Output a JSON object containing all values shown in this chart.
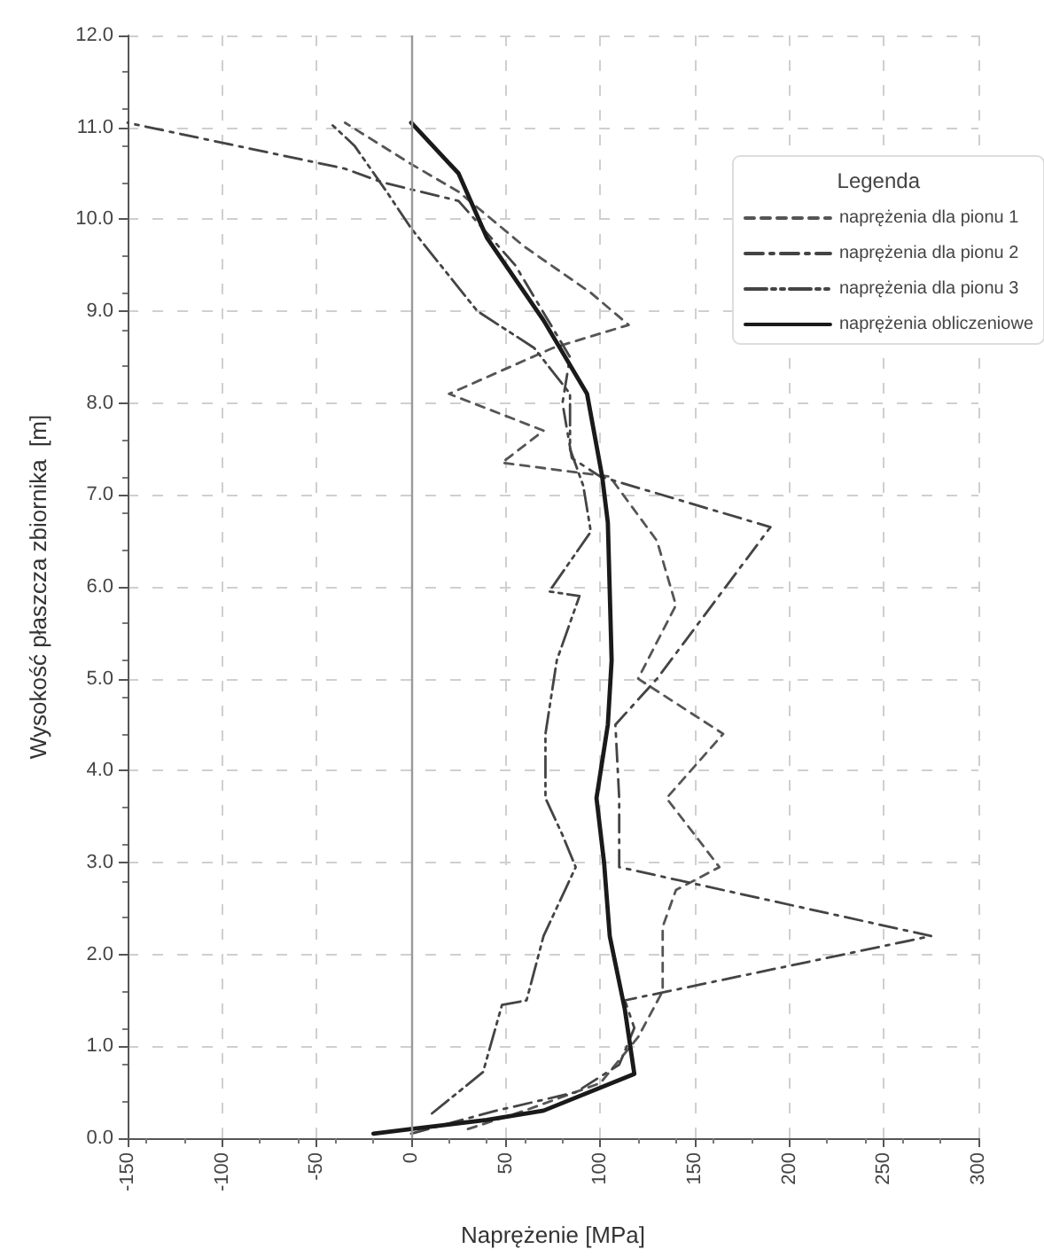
{
  "chart_data": {
    "type": "line",
    "xlabel": "Naprężenie [MPa]",
    "ylabel": "Wysokość płaszcza zbiornika  [m]",
    "legend_title": "Legenda",
    "xlim": [
      -150,
      300
    ],
    "xticks": [
      -150,
      -100,
      -50,
      0,
      50,
      100,
      150,
      200,
      250,
      300
    ],
    "ylim": [
      0,
      12
    ],
    "yticks": [
      {
        "value": 0,
        "label": "0.0"
      },
      {
        "value": 1,
        "label": "1.0"
      },
      {
        "value": 2,
        "label": "2.0"
      },
      {
        "value": 3,
        "label": "3.0"
      },
      {
        "value": 4,
        "label": "4.0"
      },
      {
        "value": 5,
        "label": "5.0"
      },
      {
        "value": 6,
        "label": "6.0"
      },
      {
        "value": 7,
        "label": "7.0"
      },
      {
        "value": 8,
        "label": "8.0"
      },
      {
        "value": 9,
        "label": "9.0"
      },
      {
        "value": 10,
        "label": "10.0"
      },
      {
        "value": 11,
        "label": "11.0"
      },
      {
        "value": 12,
        "label": "12.0"
      }
    ],
    "grid": true,
    "legend": "top right",
    "marker": "none",
    "ref_lines": [
      {
        "axis": "x",
        "value": 0,
        "color": "#999999",
        "line_style": "solid"
      }
    ],
    "series": [
      {
        "name": "naprężenia dla pionu 1",
        "color": "#555555",
        "line_style": "dashed",
        "x": [
          30,
          60,
          100,
          120,
          133,
          133,
          140,
          163,
          150,
          135,
          165,
          120,
          140,
          130,
          105,
          48,
          70,
          20,
          75,
          115,
          95,
          60,
          25,
          0,
          -35
        ],
        "values": [
          0.1,
          0.3,
          0.6,
          1.1,
          1.6,
          2.3,
          2.7,
          2.95,
          3.3,
          3.7,
          4.4,
          5.0,
          5.8,
          6.5,
          7.2,
          7.35,
          7.7,
          8.1,
          8.6,
          8.85,
          9.2,
          9.7,
          10.3,
          10.6,
          11.05
        ]
      },
      {
        "name": "naprężenia dla pionu 2",
        "color": "#444444",
        "line_style": "dashed",
        "x": [
          0,
          45,
          87,
          110,
          118,
          113,
          275,
          110,
          110,
          108,
          130,
          190,
          100,
          85,
          80,
          84,
          55,
          25,
          -15,
          -35,
          -150
        ],
        "values": [
          0.05,
          0.3,
          0.5,
          0.8,
          1.2,
          1.5,
          2.2,
          2.95,
          3.7,
          4.5,
          5.0,
          6.65,
          7.2,
          7.4,
          8.0,
          8.5,
          9.5,
          10.2,
          10.4,
          10.55,
          11.05
        ]
      },
      {
        "name": "naprężenia dla pionu 3",
        "color": "#444444",
        "line_style": "dashed",
        "x": [
          11,
          38,
          48,
          61,
          70,
          87,
          80,
          71,
          71,
          77,
          89,
          73,
          95,
          91,
          84,
          84,
          65,
          35,
          0,
          -13,
          -30,
          -43
        ],
        "values": [
          0.27,
          0.72,
          1.45,
          1.5,
          2.2,
          2.95,
          3.3,
          3.7,
          4.4,
          5.2,
          5.9,
          5.95,
          6.6,
          7.1,
          7.5,
          8.1,
          8.6,
          9.0,
          9.9,
          10.3,
          10.8,
          11.05
        ]
      },
      {
        "name": "naprężenia obliczeniowe",
        "color": "#1a1a1a",
        "line_style": "solid",
        "x": [
          -20,
          0,
          40,
          70,
          118,
          113,
          105,
          102,
          98,
          104,
          106,
          104,
          101,
          93,
          70,
          40,
          25,
          0
        ],
        "values": [
          0.05,
          0.1,
          0.2,
          0.3,
          0.7,
          1.4,
          2.2,
          3.0,
          3.7,
          4.5,
          5.2,
          6.7,
          7.2,
          8.1,
          8.9,
          9.8,
          10.5,
          11.05
        ]
      }
    ]
  }
}
